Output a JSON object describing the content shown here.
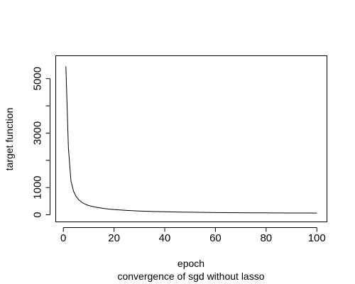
{
  "chart_data": {
    "type": "line",
    "title": "",
    "xlabel": "epoch",
    "ylabel": "target function",
    "sublabel": "convergence of sgd without lasso",
    "xlim": [
      -3,
      104
    ],
    "ylim": [
      -260,
      5840
    ],
    "x_ticks": [
      0,
      20,
      40,
      60,
      80,
      100
    ],
    "y_ticks": [
      0,
      1000,
      3000,
      5000
    ],
    "y_minor_ticks": [
      2000,
      4000
    ],
    "grid": false,
    "legend": "none",
    "line_color": "#000000",
    "series": [
      {
        "x": [
          1,
          2,
          3,
          4,
          5,
          6,
          7,
          8,
          9,
          10,
          12,
          14,
          16,
          18,
          20,
          25,
          30,
          35,
          40,
          45,
          50,
          55,
          60,
          65,
          70,
          75,
          80,
          85,
          90,
          95,
          100
        ],
        "values": [
          5450,
          2450,
          1250,
          870,
          680,
          560,
          480,
          420,
          375,
          340,
          295,
          260,
          232,
          210,
          192,
          160,
          138,
          122,
          110,
          101,
          94,
          88,
          83,
          79,
          76,
          73,
          71,
          69,
          67,
          65,
          64
        ]
      }
    ]
  }
}
